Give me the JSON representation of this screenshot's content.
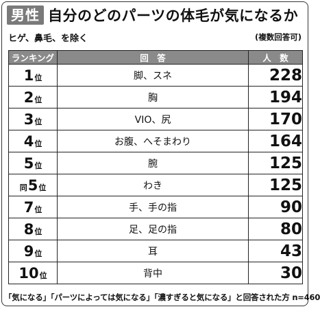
{
  "header": {
    "badge": "男性",
    "title": "自分のどのパーツの体毛が気になるか",
    "subtitle": "ヒゲ、鼻毛、を除く",
    "multi_answer_note": "(複数回答可)"
  },
  "table": {
    "columns": [
      "ランキング",
      "回　答",
      "人　数"
    ],
    "rank_suffix": "位",
    "tie_label": "同",
    "rows": [
      {
        "rank": "1",
        "tie": "",
        "answer": "脚、スネ",
        "count": "228"
      },
      {
        "rank": "2",
        "tie": "",
        "answer": "胸",
        "count": "194"
      },
      {
        "rank": "3",
        "tie": "",
        "answer": "VIO、尻",
        "count": "170"
      },
      {
        "rank": "4",
        "tie": "",
        "answer": "お腹、へそまわり",
        "count": "164"
      },
      {
        "rank": "5",
        "tie": "",
        "answer": "腕",
        "count": "125"
      },
      {
        "rank": "5",
        "tie": "同",
        "answer": "わき",
        "count": "125"
      },
      {
        "rank": "7",
        "tie": "",
        "answer": "手、手の指",
        "count": "90"
      },
      {
        "rank": "8",
        "tie": "",
        "answer": "足、足の指",
        "count": "80"
      },
      {
        "rank": "9",
        "tie": "",
        "answer": "耳",
        "count": "43"
      },
      {
        "rank": "10",
        "tie": "",
        "answer": "背中",
        "count": "30"
      }
    ]
  },
  "footnote": "「気になる」「パーツによっては気になる」「濃すぎると気になる」と回答された方 n=460",
  "colors": {
    "badge_bg": "#7a7a7a",
    "header_bg": "#8a8a8a"
  }
}
